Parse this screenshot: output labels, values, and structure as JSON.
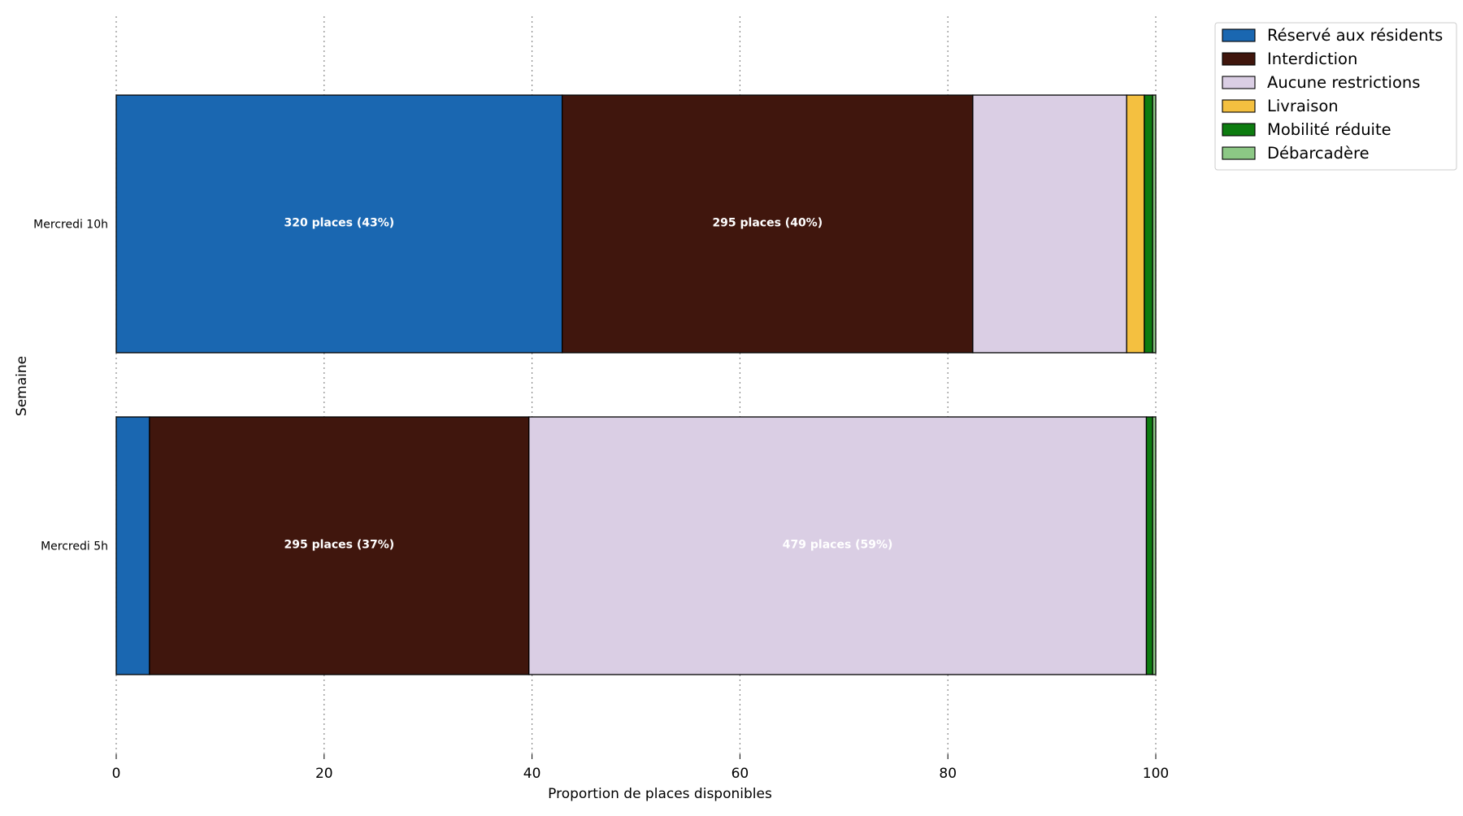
{
  "chart_data": {
    "type": "bar",
    "orientation": "horizontal",
    "stacked": true,
    "title": "",
    "xlabel": "Proportion de places disponibles",
    "ylabel": "Semaine",
    "xlim": [
      0,
      100
    ],
    "x_ticks": [
      "0",
      "20",
      "40",
      "60",
      "80",
      "100"
    ],
    "grid": "vertical dotted",
    "legend_position": "top-right outside",
    "categories": [
      "Mercredi 10h",
      "Mercredi 5h"
    ],
    "series": [
      {
        "name": "Réservé aux résidents",
        "color": "#1a67b1",
        "values": [
          42.9,
          3.2
        ],
        "labels": [
          "320 places (43%)",
          ""
        ]
      },
      {
        "name": "Interdiction",
        "color": "#40160d",
        "values": [
          39.5,
          36.5
        ],
        "labels": [
          "295 places (40%)",
          "295 places (37%)"
        ]
      },
      {
        "name": "Aucune restrictions",
        "color": "#dacee4",
        "values": [
          14.8,
          59.4
        ],
        "labels": [
          "",
          "479 places (59%)"
        ]
      },
      {
        "name": "Livraison",
        "color": "#f4c040",
        "values": [
          1.7,
          0
        ],
        "labels": [
          "",
          ""
        ]
      },
      {
        "name": "Mobilité réduite",
        "color": "#0d7c10",
        "values": [
          0.8,
          0.6
        ],
        "labels": [
          "",
          ""
        ]
      },
      {
        "name": "Débarcadère",
        "color": "#8cc885",
        "values": [
          0.3,
          0.3
        ],
        "labels": [
          "",
          ""
        ]
      }
    ]
  }
}
